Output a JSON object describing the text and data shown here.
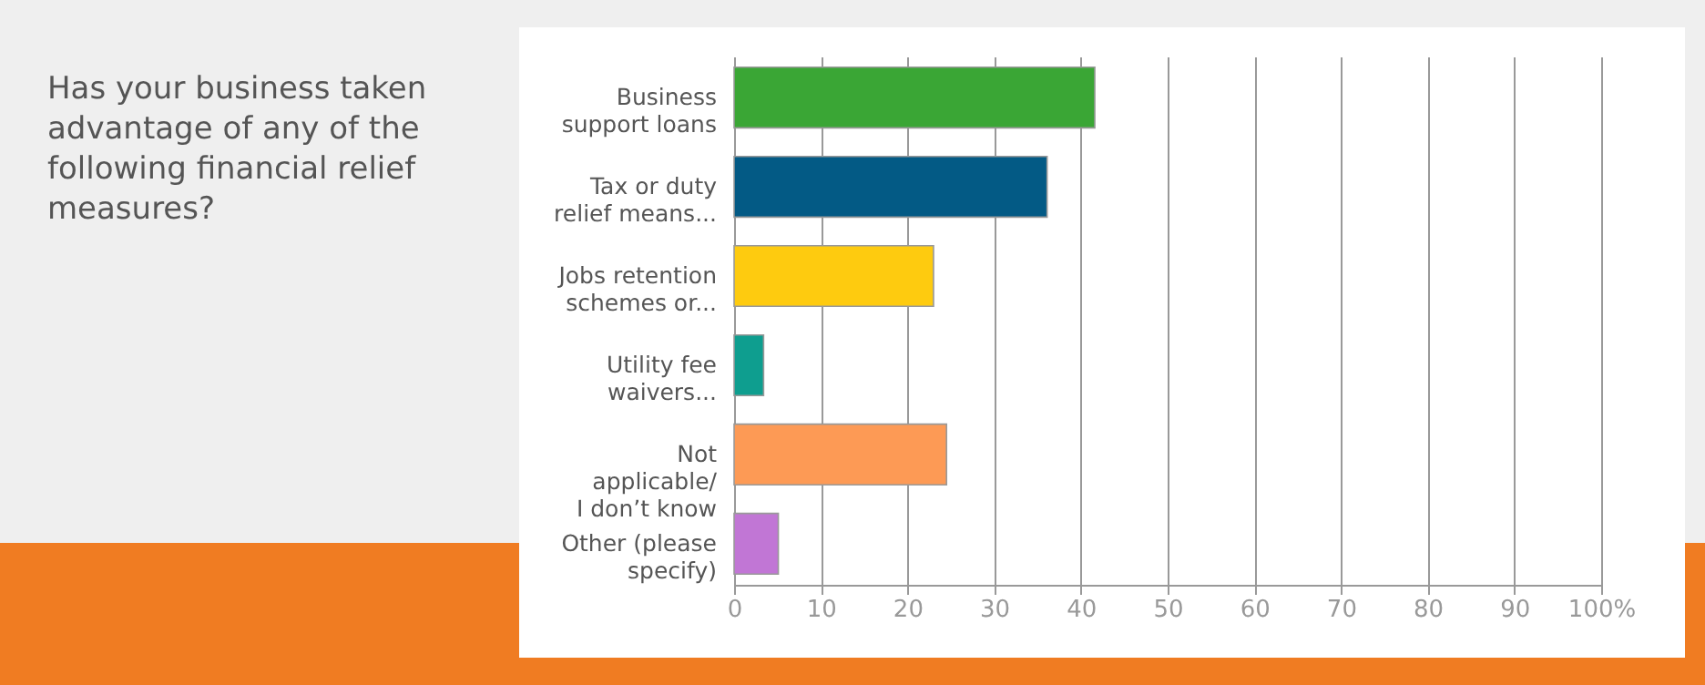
{
  "chart_data": {
    "type": "bar",
    "orientation": "horizontal",
    "title": "Has your business taken advantage of any of the following financial relief measures?",
    "categories": [
      "Business\nsupport loans",
      "Tax or duty\nrelief means...",
      "Jobs retention\nschemes or...",
      "Utility fee\nwaivers...",
      "Not\napplicable/\nI don’t know",
      "Other (please\nspecify)"
    ],
    "values": [
      41.6,
      36.1,
      23.0,
      3.4,
      24.5,
      5.1
    ],
    "colors": [
      "#3aa635",
      "#035a85",
      "#fecb0f",
      "#0e9e8f",
      "#fd9a55",
      "#c176d5"
    ],
    "xlim": [
      0,
      100
    ],
    "xticks": [
      0,
      10,
      20,
      30,
      40,
      50,
      60,
      70,
      80,
      90,
      {
        "value": 100,
        "label": "100%"
      }
    ],
    "grid": "x"
  }
}
